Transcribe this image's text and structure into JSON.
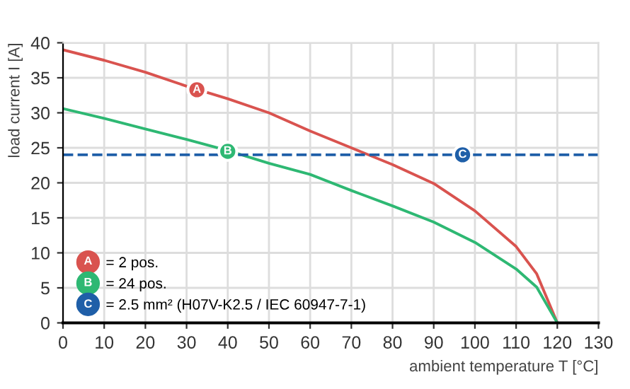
{
  "chart_data": {
    "type": "line",
    "xlabel": "ambient temperature T [°C]",
    "ylabel": "load current I [A]",
    "x": [
      0,
      10,
      20,
      30,
      40,
      50,
      60,
      70,
      80,
      90,
      100,
      110,
      115,
      120
    ],
    "series": [
      {
        "name": "= 2 pos.",
        "color": "#d9534f",
        "values": [
          39,
          37.5,
          35.8,
          33.8,
          32,
          30,
          27.4,
          25,
          22.6,
          19.9,
          16,
          10.9,
          7,
          0
        ]
      },
      {
        "name": "= 24 pos.",
        "color": "#2eb873",
        "values": [
          30.6,
          29.2,
          27.7,
          26.2,
          24.6,
          22.8,
          21.2,
          18.9,
          16.7,
          14.4,
          11.5,
          7.7,
          5.1,
          0
        ]
      },
      {
        "name": "= 2.5 mm² (H07V-K2.5 / IEC 60947-7-1)",
        "color": "#1f5fa8",
        "line_style": "dashed",
        "x": [
          0,
          130
        ],
        "values": [
          24,
          24
        ]
      }
    ],
    "annotations": [
      {
        "text": "A",
        "x": 32.5,
        "y": 33.3
      },
      {
        "text": "B",
        "x": 40,
        "y": 24.5
      },
      {
        "text": "C",
        "x": 97,
        "y": 24
      }
    ],
    "xlim": [
      0,
      130
    ],
    "xticks": [
      0,
      10,
      20,
      30,
      40,
      50,
      60,
      70,
      80,
      90,
      100,
      110,
      120,
      130
    ],
    "ylim": [
      0,
      40
    ],
    "yticks": [
      0,
      5,
      10,
      15,
      20,
      25,
      30,
      35,
      40
    ],
    "grid": true,
    "legend": "bottom left",
    "marker": "none",
    "line_style": "solid"
  }
}
